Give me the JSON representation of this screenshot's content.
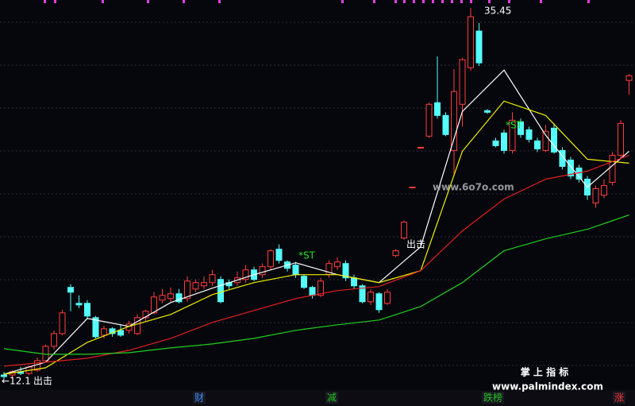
{
  "chart_data": {
    "type": "candlestick",
    "ylim": [
      11.5,
      35.95
    ],
    "up_color": "#ff3c3c",
    "down_color": "#54fcfc",
    "open": [
      12.4,
      12.4,
      12.6,
      12.5,
      12.7,
      13.3,
      14.2,
      15.0,
      17.9,
      16.9,
      16.9,
      16.0,
      14.9,
      15.3,
      15.2,
      15.2,
      15.0,
      16.0,
      16.3,
      17.1,
      17.2,
      17.5,
      17.2,
      17.8,
      18.0,
      18.2,
      18.4,
      18.2,
      18.2,
      18.4,
      19.0,
      18.7,
      19.2,
      20.3,
      19.5,
      19.3,
      18.6,
      17.9,
      17.4,
      18.7,
      19.2,
      19.4,
      18.5,
      18.0,
      17.0,
      17.5,
      16.9,
      19.9,
      21.0,
      24.2,
      26.7,
      27.4,
      29.5,
      28.7,
      26.5,
      29.4,
      31.7,
      34.0,
      29.0,
      27.1,
      27.6,
      26.5,
      28.3,
      27.8,
      27.1,
      26.5,
      27.9,
      26.5,
      25.9,
      25.4,
      24.7,
      23.2,
      23.7,
      24.5,
      26.2,
      30.9
    ],
    "high": [
      12.6,
      12.7,
      12.9,
      13.0,
      13.5,
      14.3,
      15.2,
      16.5,
      18.1,
      17.4,
      17.1,
      16.1,
      15.5,
      15.4,
      15.6,
      15.8,
      16.2,
      16.5,
      17.6,
      17.8,
      17.9,
      17.8,
      18.6,
      18.4,
      18.6,
      19.0,
      18.6,
      18.4,
      18.9,
      19.3,
      19.2,
      19.4,
      20.3,
      20.6,
      19.6,
      19.5,
      18.7,
      18.0,
      18.5,
      19.6,
      19.8,
      19.6,
      18.7,
      18.1,
      17.8,
      17.6,
      17.8,
      20.3,
      22.1,
      24.2,
      26.7,
      29.5,
      32.4,
      28.9,
      31.6,
      32.3,
      35.45,
      34.5,
      29.1,
      27.3,
      27.8,
      28.9,
      28.5,
      28.0,
      27.3,
      28.1,
      28.2,
      26.7,
      26.1,
      25.6,
      24.9,
      24.3,
      24.7,
      26.4,
      28.4,
      31.3
    ],
    "low": [
      12.1,
      12.2,
      12.4,
      12.4,
      12.6,
      13.2,
      14.0,
      14.9,
      16.4,
      16.6,
      15.9,
      14.7,
      14.7,
      14.8,
      14.8,
      15.0,
      14.9,
      15.8,
      16.2,
      16.9,
      17.0,
      16.9,
      17.0,
      17.6,
      17.8,
      18.0,
      16.9,
      17.8,
      18.0,
      18.2,
      18.3,
      18.5,
      19.0,
      19.4,
      18.9,
      18.5,
      17.8,
      17.2,
      17.3,
      18.5,
      19.0,
      18.3,
      17.8,
      16.9,
      16.8,
      16.3,
      16.8,
      19.8,
      20.9,
      24.2,
      26.7,
      27.3,
      28.5,
      27.4,
      25.0,
      28.0,
      31.5,
      31.8,
      28.8,
      26.7,
      26.3,
      26.3,
      27.3,
      27.0,
      26.4,
      26.4,
      26.3,
      25.3,
      24.7,
      24.5,
      23.4,
      22.9,
      23.5,
      24.3,
      26.0,
      30.0
    ],
    "close": [
      12.3,
      12.6,
      12.5,
      12.9,
      13.3,
      14.2,
      15.0,
      16.3,
      17.6,
      16.8,
      16.1,
      14.8,
      15.3,
      15.0,
      14.9,
      15.6,
      16.0,
      16.4,
      17.3,
      17.4,
      17.5,
      17.0,
      18.3,
      18.2,
      18.2,
      18.7,
      17.0,
      18.0,
      18.5,
      19.0,
      18.4,
      19.2,
      20.2,
      19.6,
      19.1,
      18.7,
      17.9,
      17.4,
      18.3,
      19.4,
      19.5,
      18.5,
      18.0,
      17.0,
      17.6,
      16.5,
      17.6,
      20.2,
      22.0,
      24.2,
      26.7,
      29.4,
      28.7,
      27.5,
      30.2,
      32.2,
      34.9,
      32.0,
      28.9,
      26.8,
      26.5,
      28.4,
      27.5,
      27.2,
      26.6,
      27.7,
      26.4,
      25.5,
      24.9,
      24.7,
      23.7,
      24.1,
      24.3,
      26.2,
      28.2,
      31.2
    ],
    "lines": [
      {
        "color": "#ffffff",
        "x": [
          0,
          5,
          10,
          15,
          20,
          25,
          30,
          35,
          40,
          45,
          50,
          55,
          60,
          65,
          70,
          75
        ],
        "values": [
          12.45,
          13.2,
          15.95,
          15.45,
          16.95,
          17.85,
          18.7,
          19.45,
          18.7,
          18.2,
          20.45,
          28.95,
          31.55,
          27.45,
          24.2,
          26.45
        ]
      },
      {
        "color": "#f0f000",
        "x": [
          0,
          5,
          10,
          15,
          20,
          25,
          30,
          35,
          40,
          45,
          50,
          55,
          60,
          65,
          70,
          75
        ],
        "values": [
          12.45,
          12.85,
          14.45,
          15.45,
          16.2,
          17.45,
          18.2,
          18.7,
          18.7,
          18.2,
          18.95,
          26.45,
          29.6,
          28.7,
          25.95,
          25.7
        ]
      },
      {
        "color": "#e02020",
        "x": [
          0,
          5,
          10,
          15,
          20,
          25,
          30,
          35,
          40,
          45,
          50,
          55,
          60,
          65,
          70,
          75
        ],
        "values": [
          12.95,
          13.2,
          13.45,
          13.95,
          14.7,
          15.7,
          16.45,
          17.2,
          17.7,
          17.95,
          18.95,
          21.45,
          23.45,
          24.7,
          25.2,
          26.2
        ]
      },
      {
        "color": "#20d020",
        "x": [
          0,
          5,
          10,
          15,
          20,
          25,
          30,
          35,
          40,
          45,
          50,
          55,
          60,
          65,
          70,
          75
        ],
        "values": [
          14.05,
          13.7,
          13.7,
          13.8,
          14.1,
          14.35,
          14.7,
          15.2,
          15.55,
          15.85,
          16.7,
          18.2,
          20.2,
          20.95,
          21.55,
          22.45
        ]
      }
    ],
    "annotations": [
      {
        "text": "35.45",
        "color": "#ffffff"
      },
      {
        "text": "←12.1",
        "color": "#ffffff"
      },
      {
        "text": "出击",
        "color": "#ffffff"
      },
      {
        "text": "出击",
        "color": "#ffffff"
      },
      {
        "text": "*ST",
        "color": "#20e020"
      },
      {
        "text": "*ST",
        "color": "#20e020"
      }
    ],
    "watermark": "www.6o7o.com",
    "brand": "掌 上 指 标",
    "site": "www.palmindex.com",
    "bottom_labels": [
      {
        "text": "财",
        "color": "#3a8cff"
      },
      {
        "text": "减",
        "color": "#20c020"
      },
      {
        "text": "跌榜",
        "color": "#20c020"
      },
      {
        "text": "涨",
        "color": "#ff3030"
      }
    ]
  }
}
